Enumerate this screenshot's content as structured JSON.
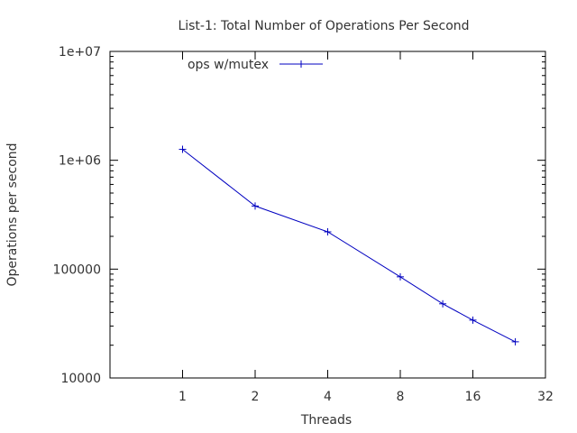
{
  "chart_data": {
    "type": "line",
    "title": "List-1: Total Number of Operations Per Second",
    "xlabel": "Threads",
    "ylabel": "Operations per second",
    "x_scale": "log2",
    "y_scale": "log10",
    "xlim": [
      0.5,
      32
    ],
    "ylim": [
      10000,
      10000000
    ],
    "x_ticks": [
      1,
      2,
      4,
      8,
      16,
      32
    ],
    "x_tick_labels": [
      "1",
      "2",
      "4",
      "8",
      "16",
      "32"
    ],
    "y_ticks": [
      10000,
      100000,
      1000000,
      10000000
    ],
    "y_tick_labels": [
      "10000",
      "100000",
      "1e+06",
      "1e+07"
    ],
    "grid": false,
    "legend_position": "top-left",
    "series": [
      {
        "name": "ops w/mutex",
        "color": "#0000c0",
        "marker": "plus",
        "x": [
          1,
          2,
          4,
          8,
          12,
          16,
          24
        ],
        "y": [
          1260000,
          380000,
          220000,
          85000,
          48000,
          34000,
          21500
        ]
      }
    ]
  }
}
